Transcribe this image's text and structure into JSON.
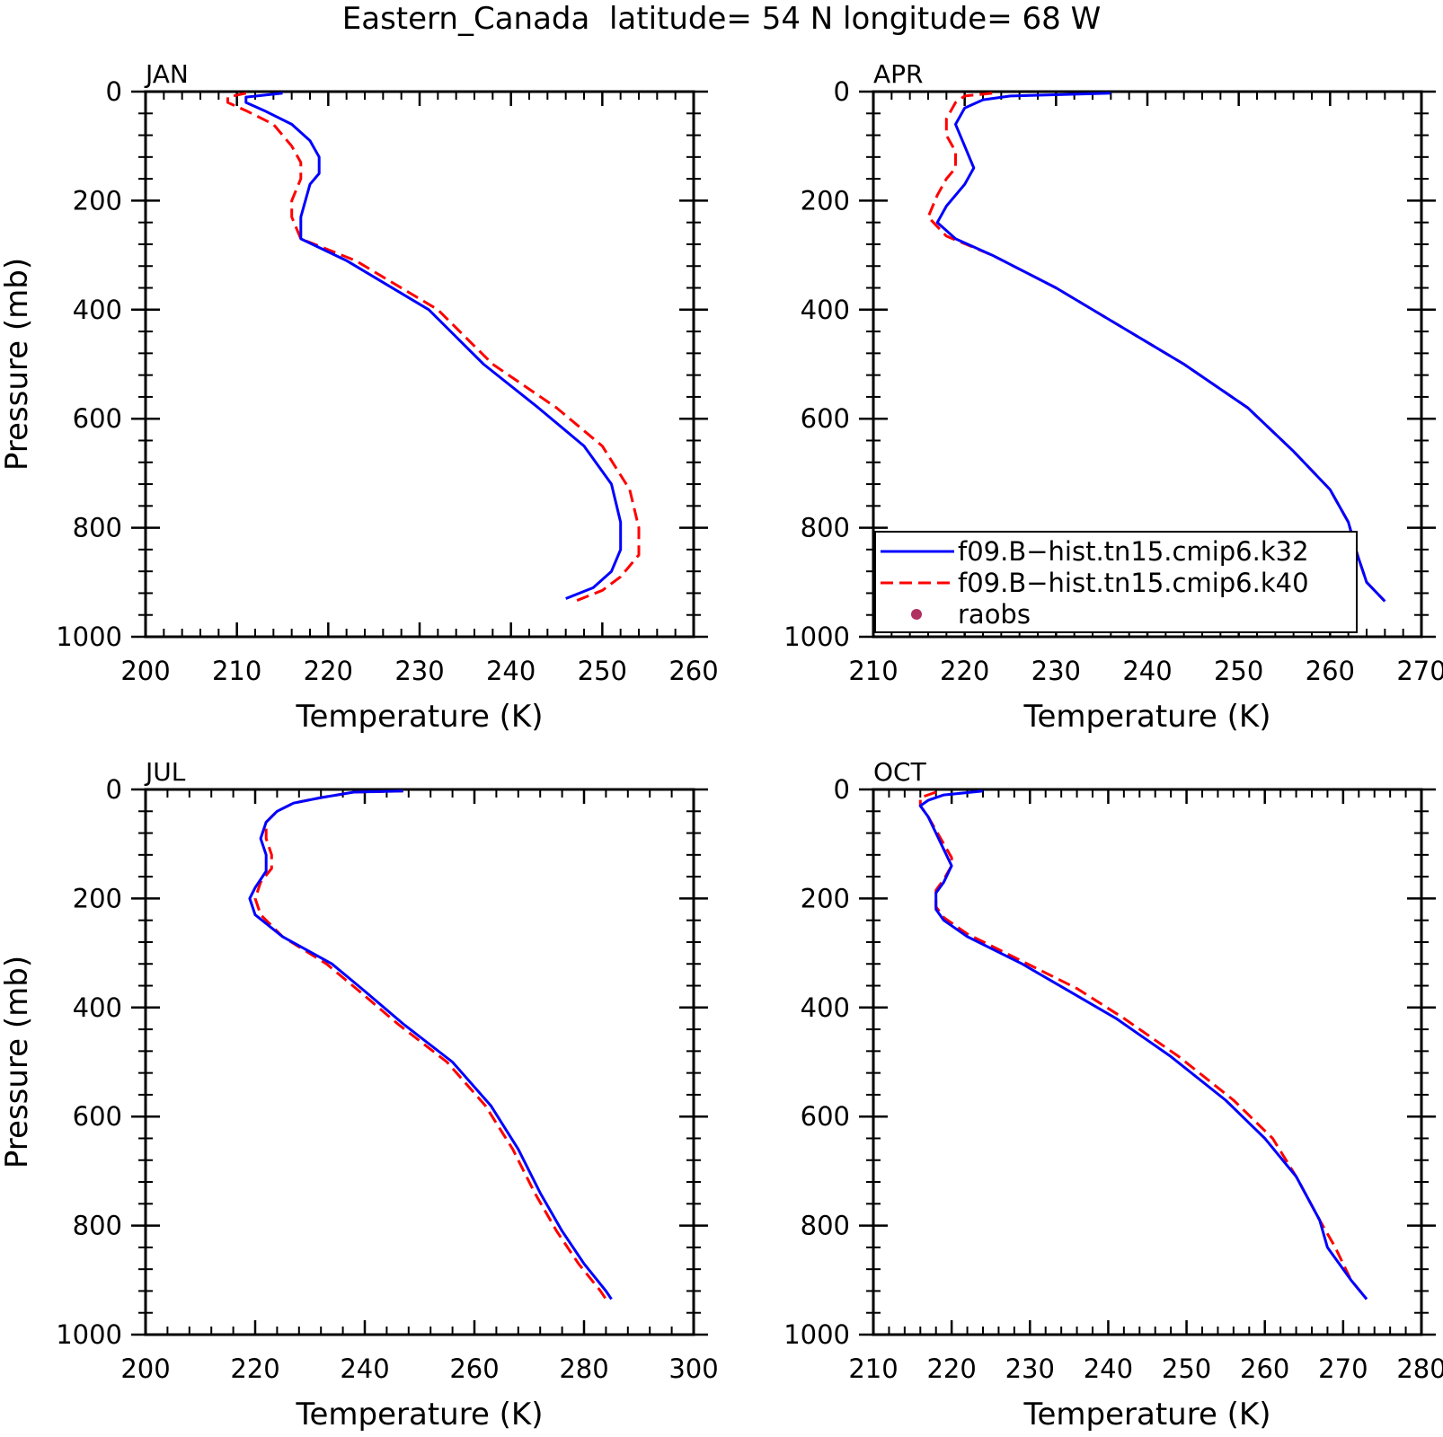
{
  "title": "Eastern_Canada  latitude= 54 N longitude= 68 W",
  "legend": {
    "entries": [
      {
        "label": "f09.B−hist.tn15.cmip6.k32",
        "color": "#0000ff",
        "style": "solid"
      },
      {
        "label": "f09.B−hist.tn15.cmip6.k40",
        "color": "#ff0000",
        "style": "dashed"
      },
      {
        "label": "raobs",
        "color": "#b03060",
        "style": "marker"
      }
    ]
  },
  "chart_data": [
    {
      "type": "line",
      "panel": "JAN",
      "xlabel": "Temperature (K)",
      "ylabel": "Pressure (mb)",
      "xlim": [
        200,
        260
      ],
      "ylim": [
        1000,
        0
      ],
      "xticks": [
        "200",
        "210",
        "220",
        "230",
        "240",
        "250",
        "260"
      ],
      "yticks": [
        "0",
        "200",
        "400",
        "600",
        "800",
        "1000"
      ],
      "series": [
        {
          "name": "f09.B−hist.tn15.cmip6.k32",
          "points": [
            [
              215,
              3
            ],
            [
              211,
              10
            ],
            [
              211,
              20
            ],
            [
              213,
              35
            ],
            [
              216,
              60
            ],
            [
              218,
              90
            ],
            [
              219,
              120
            ],
            [
              219,
              150
            ],
            [
              218,
              170
            ],
            [
              217,
              230
            ],
            [
              217,
              270
            ],
            [
              222,
              310
            ],
            [
              231,
              400
            ],
            [
              237,
              500
            ],
            [
              243,
              580
            ],
            [
              248,
              650
            ],
            [
              251,
              720
            ],
            [
              252,
              790
            ],
            [
              252,
              840
            ],
            [
              251,
              880
            ],
            [
              249,
              910
            ],
            [
              246,
              930
            ]
          ]
        },
        {
          "name": "f09.B−hist.tn15.cmip6.k40",
          "points": [
            [
              211,
              3
            ],
            [
              209,
              10
            ],
            [
              209,
              20
            ],
            [
              211,
              35
            ],
            [
              214,
              60
            ],
            [
              216,
              100
            ],
            [
              217,
              130
            ],
            [
              217,
              160
            ],
            [
              216,
              200
            ],
            [
              216,
              230
            ],
            [
              217,
              270
            ],
            [
              223,
              310
            ],
            [
              232,
              400
            ],
            [
              238,
              500
            ],
            [
              245,
              580
            ],
            [
              250,
              650
            ],
            [
              253,
              730
            ],
            [
              254,
              800
            ],
            [
              254,
              850
            ],
            [
              252,
              890
            ],
            [
              250,
              915
            ],
            [
              247,
              935
            ]
          ]
        }
      ]
    },
    {
      "type": "line",
      "panel": "APR",
      "xlabel": "Temperature (K)",
      "ylabel": "",
      "xlim": [
        210,
        270
      ],
      "ylim": [
        1000,
        0
      ],
      "xticks": [
        "210",
        "220",
        "230",
        "240",
        "250",
        "260",
        "270"
      ],
      "yticks": [
        "0",
        "200",
        "400",
        "600",
        "800",
        "1000"
      ],
      "series": [
        {
          "name": "f09.B−hist.tn15.cmip6.k32",
          "points": [
            [
              236,
              3
            ],
            [
              225,
              8
            ],
            [
              222,
              15
            ],
            [
              220,
              30
            ],
            [
              219,
              60
            ],
            [
              220,
              100
            ],
            [
              221,
              140
            ],
            [
              220,
              170
            ],
            [
              218,
              210
            ],
            [
              217,
              240
            ],
            [
              219,
              270
            ],
            [
              223,
              300
            ],
            [
              230,
              360
            ],
            [
              237,
              430
            ],
            [
              244,
              500
            ],
            [
              251,
              580
            ],
            [
              256,
              660
            ],
            [
              260,
              730
            ],
            [
              262,
              790
            ],
            [
              263,
              850
            ],
            [
              264,
              900
            ],
            [
              266,
              935
            ]
          ]
        },
        {
          "name": "f09.B−hist.tn15.cmip6.k40",
          "points": [
            [
              223,
              3
            ],
            [
              220,
              8
            ],
            [
              219,
              20
            ],
            [
              218,
              50
            ],
            [
              218,
              80
            ],
            [
              219,
              110
            ],
            [
              219,
              140
            ],
            [
              218,
              160
            ],
            [
              217,
              190
            ],
            [
              216,
              230
            ],
            [
              218,
              265
            ],
            [
              223,
              300
            ],
            [
              230,
              360
            ],
            [
              237,
              430
            ],
            [
              244,
              500
            ],
            [
              251,
              580
            ],
            [
              256,
              660
            ],
            [
              260,
              730
            ],
            [
              262,
              790
            ],
            [
              263,
              850
            ],
            [
              264,
              900
            ],
            [
              266,
              935
            ]
          ]
        }
      ]
    },
    {
      "type": "line",
      "panel": "JUL",
      "xlabel": "Temperature (K)",
      "ylabel": "Pressure (mb)",
      "xlim": [
        200,
        300
      ],
      "ylim": [
        1000,
        0
      ],
      "xticks": [
        "200",
        "220",
        "240",
        "260",
        "280",
        "300"
      ],
      "yticks": [
        "0",
        "200",
        "400",
        "600",
        "800",
        "1000"
      ],
      "series": [
        {
          "name": "f09.B−hist.tn15.cmip6.k32",
          "points": [
            [
              247,
              3
            ],
            [
              238,
              5
            ],
            [
              232,
              15
            ],
            [
              227,
              25
            ],
            [
              224,
              40
            ],
            [
              222,
              60
            ],
            [
              221,
              90
            ],
            [
              222,
              120
            ],
            [
              222,
              150
            ],
            [
              220,
              180
            ],
            [
              219,
              200
            ],
            [
              220,
              230
            ],
            [
              225,
              270
            ],
            [
              234,
              320
            ],
            [
              240,
              370
            ],
            [
              247,
              430
            ],
            [
              256,
              500
            ],
            [
              263,
              580
            ],
            [
              268,
              660
            ],
            [
              272,
              740
            ],
            [
              276,
              810
            ],
            [
              280,
              870
            ],
            [
              284,
              920
            ],
            [
              285,
              935
            ]
          ]
        },
        {
          "name": "f09.B−hist.tn15.cmip6.k40",
          "points": [
            [
              247,
              3
            ],
            [
              238,
              5
            ],
            [
              232,
              15
            ],
            [
              227,
              25
            ],
            [
              224,
              40
            ],
            [
              222,
              60
            ],
            [
              222,
              90
            ],
            [
              223,
              120
            ],
            [
              223,
              145
            ],
            [
              221,
              170
            ],
            [
              220,
              200
            ],
            [
              221,
              230
            ],
            [
              225,
              270
            ],
            [
              233,
              320
            ],
            [
              239,
              370
            ],
            [
              246,
              430
            ],
            [
              255,
              500
            ],
            [
              262,
              580
            ],
            [
              267,
              660
            ],
            [
              271,
              740
            ],
            [
              275,
              810
            ],
            [
              279,
              870
            ],
            [
              283,
              920
            ],
            [
              284,
              935
            ]
          ]
        }
      ]
    },
    {
      "type": "line",
      "panel": "OCT",
      "xlabel": "Temperature (K)",
      "ylabel": "",
      "xlim": [
        210,
        280
      ],
      "ylim": [
        1000,
        0
      ],
      "xticks": [
        "210",
        "220",
        "230",
        "240",
        "250",
        "260",
        "270",
        "280"
      ],
      "yticks": [
        "0",
        "200",
        "400",
        "600",
        "800",
        "1000"
      ],
      "series": [
        {
          "name": "f09.B−hist.tn15.cmip6.k32",
          "points": [
            [
              224,
              3
            ],
            [
              219,
              10
            ],
            [
              217,
              20
            ],
            [
              216,
              30
            ],
            [
              217,
              50
            ],
            [
              218,
              80
            ],
            [
              219,
              110
            ],
            [
              220,
              140
            ],
            [
              219,
              170
            ],
            [
              218,
              190
            ],
            [
              218,
              220
            ],
            [
              219,
              240
            ],
            [
              222,
              270
            ],
            [
              229,
              320
            ],
            [
              235,
              370
            ],
            [
              241,
              420
            ],
            [
              248,
              490
            ],
            [
              255,
              570
            ],
            [
              260,
              640
            ],
            [
              264,
              710
            ],
            [
              267,
              790
            ],
            [
              268,
              840
            ],
            [
              271,
              900
            ],
            [
              273,
              935
            ]
          ]
        },
        {
          "name": "f09.B−hist.tn15.cmip6.k40",
          "points": [
            [
              218,
              5
            ],
            [
              216,
              15
            ],
            [
              216,
              30
            ],
            [
              217,
              50
            ],
            [
              218,
              75
            ],
            [
              219,
              100
            ],
            [
              220,
              125
            ],
            [
              220,
              140
            ],
            [
              219,
              165
            ],
            [
              218,
              185
            ],
            [
              218,
              215
            ],
            [
              219,
              235
            ],
            [
              222,
              265
            ],
            [
              229,
              315
            ],
            [
              236,
              365
            ],
            [
              242,
              420
            ],
            [
              249,
              490
            ],
            [
              256,
              570
            ],
            [
              261,
              640
            ],
            [
              264,
              710
            ],
            [
              267,
              790
            ],
            [
              269,
              840
            ],
            [
              271,
              900
            ],
            [
              273,
              935
            ]
          ]
        }
      ]
    }
  ]
}
